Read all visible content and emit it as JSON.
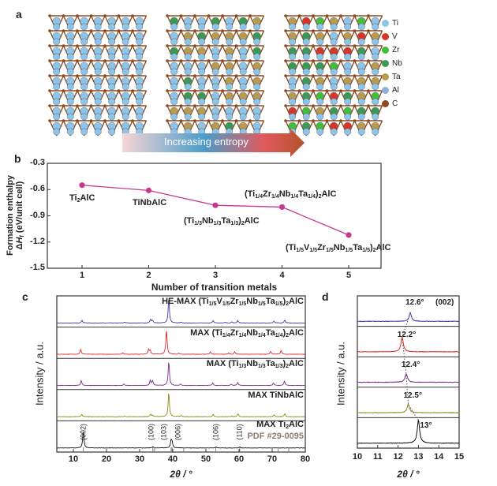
{
  "panel_labels": {
    "a": "a",
    "b": "b",
    "c": "c",
    "d": "d"
  },
  "panel_a": {
    "arrow_text": "Increasing entropy",
    "legend": [
      {
        "el": "Ti",
        "color": "#8cc4ea"
      },
      {
        "el": "V",
        "color": "#d8342a"
      },
      {
        "el": "Zr",
        "color": "#3fbf3a"
      },
      {
        "el": "Nb",
        "color": "#3a9a55"
      },
      {
        "el": "Ta",
        "color": "#b99a4e"
      },
      {
        "el": "Al",
        "color": "#8fb0d8"
      },
      {
        "el": "C",
        "color": "#8a4a22"
      }
    ]
  },
  "chart_data": [
    {
      "type": "line",
      "panel": "b",
      "xlabel": "Number of transition metals",
      "ylabel_line1": "Formation enthalpy",
      "ylabel_line2": "ΔHf (eV/unit cell)",
      "x": [
        1,
        2,
        3,
        4,
        5
      ],
      "y": [
        -0.55,
        -0.61,
        -0.78,
        -0.8,
        -1.12
      ],
      "xlim": [
        0.25,
        5.25
      ],
      "ylim": [
        -1.5,
        -0.3
      ],
      "xticks": [
        "1",
        "2",
        "3",
        "4",
        "5"
      ],
      "yticks": [
        "-0.3",
        "-0.6",
        "-0.9",
        "-1.2",
        "-1.5"
      ],
      "point_labels": [
        "Ti2AlC",
        "TiNbAlC",
        "(Ti1/3Nb1/3Ta1/3)2AlC",
        "(Ti1/4Zr1/4Nb1/4Ta1/4)2AlC",
        "(Ti1/5V1/5Zr1/5Nb1/5Ta1/5)2AlC"
      ],
      "color": "#c8388f"
    },
    {
      "type": "line",
      "panel": "c",
      "xlabel": "2θ / °",
      "ylabel": "Intensity / a.u.",
      "xlim": [
        5,
        80
      ],
      "xticks": [
        "10",
        "20",
        "30",
        "40",
        "50",
        "60",
        "70",
        "80"
      ],
      "series": [
        {
          "name": "HE-MAX (Ti1/5V1/5Zr1/5Nb1/5Ta1/5)2AlC",
          "color": "#3a3aa8",
          "peaks": [
            [
              12.6,
              0.12
            ],
            [
              25.5,
              0.04
            ],
            [
              33.3,
              0.15
            ],
            [
              33.9,
              0.1
            ],
            [
              38.8,
              1.0
            ],
            [
              42.5,
              0.04
            ],
            [
              52.2,
              0.1
            ],
            [
              55.8,
              0.03
            ],
            [
              57.8,
              0.05
            ],
            [
              59.6,
              0.1
            ],
            [
              70.5,
              0.08
            ],
            [
              73.8,
              0.12
            ]
          ]
        },
        {
          "name": "MAX (Ti1/4Zr1/4Nb1/4Ta1/4)2AlC",
          "color": "#e02a2a",
          "peaks": [
            [
              12.2,
              0.2
            ],
            [
              24.9,
              0.06
            ],
            [
              32.7,
              0.2
            ],
            [
              33.2,
              0.15
            ],
            [
              38.1,
              1.0
            ],
            [
              41.8,
              0.04
            ],
            [
              51.4,
              0.1
            ],
            [
              56.9,
              0.05
            ],
            [
              58.7,
              0.1
            ],
            [
              69.5,
              0.12
            ],
            [
              72.7,
              0.15
            ]
          ]
        },
        {
          "name": "MAX (Ti1/3Nb1/3Ta1/3)2AlC",
          "color": "#7a2a8a",
          "peaks": [
            [
              12.4,
              0.2
            ],
            [
              25.3,
              0.06
            ],
            [
              33.2,
              0.2
            ],
            [
              33.9,
              0.2
            ],
            [
              38.8,
              1.0
            ],
            [
              42.4,
              0.06
            ],
            [
              52.1,
              0.1
            ],
            [
              57.6,
              0.06
            ],
            [
              59.6,
              0.12
            ],
            [
              70.4,
              0.1
            ],
            [
              73.7,
              0.18
            ]
          ]
        },
        {
          "name": "MAX TiNbAlC",
          "color": "#8a8a1e",
          "peaks": [
            [
              12.5,
              0.1
            ],
            [
              25.5,
              0.03
            ],
            [
              33.3,
              0.1
            ],
            [
              33.9,
              0.06
            ],
            [
              38.8,
              1.0
            ],
            [
              41.5,
              0.03
            ],
            [
              42.5,
              0.04
            ],
            [
              52.2,
              0.1
            ],
            [
              57.8,
              0.03
            ],
            [
              59.7,
              0.12
            ],
            [
              70.6,
              0.08
            ],
            [
              73.8,
              0.12
            ]
          ]
        },
        {
          "name": "MAX Ti2AlC",
          "color": "#111111",
          "peaks": [
            [
              13.0,
              0.7
            ],
            [
              34.0,
              0.05
            ],
            [
              39.5,
              0.3
            ],
            [
              39.8,
              0.2
            ],
            [
              53.0,
              0.04
            ],
            [
              60.2,
              0.04
            ]
          ]
        }
      ],
      "reference": {
        "label": "PDF #29-0095",
        "color": "#8a7a70",
        "sticks": [
          13.0,
          34.0,
          34.5,
          39.5,
          39.8,
          43.3,
          53.0,
          60.2,
          71.8,
          75.0
        ]
      },
      "hkl": [
        {
          "label": "(002)",
          "x": 13.0
        },
        {
          "label": "(100)",
          "x": 34.0
        },
        {
          "label": "(103)",
          "x": 38.9
        },
        {
          "label": "(006)",
          "x": 40.2
        },
        {
          "label": "(106)",
          "x": 53.0
        },
        {
          "label": "(110)",
          "x": 60.2
        }
      ]
    },
    {
      "type": "line",
      "panel": "d",
      "xlabel": "2θ / °",
      "ylabel": "Intensity / a.u.",
      "xlim": [
        10,
        15
      ],
      "xticks": [
        "10",
        "11",
        "12",
        "13",
        "14",
        "15"
      ],
      "annotation": "(002)",
      "series": [
        {
          "color": "#3a3aa8",
          "peak": 12.6,
          "label": "12.6°"
        },
        {
          "color": "#e02a2a",
          "peak": 12.2,
          "label": "12.2°"
        },
        {
          "color": "#7a2a8a",
          "peak": 12.4,
          "label": "12.4°"
        },
        {
          "color": "#8a8a1e",
          "peak": 12.5,
          "label": "12.5°"
        },
        {
          "color": "#111111",
          "peak": 13.0,
          "label": "13°"
        }
      ]
    }
  ]
}
